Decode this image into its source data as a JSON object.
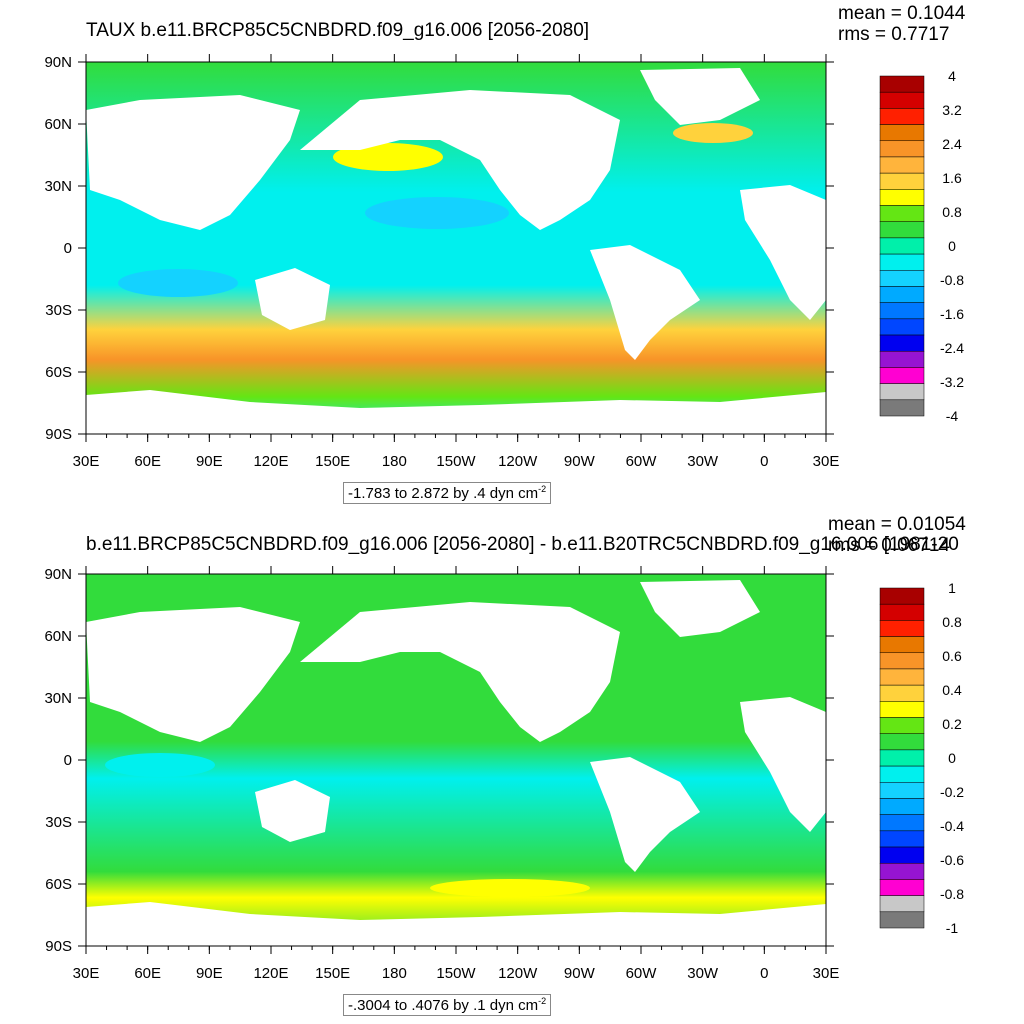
{
  "chart_data": [
    {
      "type": "heatmap",
      "title": "TAUX b.e11.BRCP85C5CNBDRD.f09_g16.006 [2056-2080]",
      "stats": {
        "mean": "mean = 0.1044",
        "rms": "rms = 0.7717"
      },
      "x_ticks": [
        "30E",
        "60E",
        "90E",
        "120E",
        "150E",
        "180",
        "150W",
        "120W",
        "90W",
        "60W",
        "30W",
        "0",
        "30E"
      ],
      "y_ticks": [
        "90N",
        "60N",
        "30N",
        "0",
        "30S",
        "60S",
        "90S"
      ],
      "xlim": [
        "30E",
        "30E"
      ],
      "ylim": [
        "90S",
        "90N"
      ],
      "colorbar": {
        "labels": [
          "4",
          "3.2",
          "2.4",
          "1.6",
          "0.8",
          "0",
          "-0.8",
          "-1.6",
          "-2.4",
          "-3.2",
          "-4"
        ],
        "colors": [
          "#a80000",
          "#d40000",
          "#ff2000",
          "#e87800",
          "#f89428",
          "#ffb43c",
          "#ffd23c",
          "#ffff00",
          "#64e614",
          "#32dc3c",
          "#00f0aa",
          "#00f0ee",
          "#14d2ff",
          "#00aaff",
          "#0078ff",
          "#0046ff",
          "#0000f0",
          "#9614d2",
          "#ff00d2",
          "#c8c8c8",
          "#7a7a7a"
        ]
      },
      "contour_label": {
        "range": "-1.783 to 2.872 by .4 dyn cm",
        "unit_exp": "-2"
      }
    },
    {
      "type": "heatmap",
      "title": "b.e11.BRCP85C5CNBDRD.f09_g16.006 [2056-2080] - b.e11.B20TRC5CNBDRD.f09_g16.006 [1981-20",
      "stats": {
        "mean": "mean = 0.01054",
        "rms": "rms = 0.06714"
      },
      "x_ticks": [
        "30E",
        "60E",
        "90E",
        "120E",
        "150E",
        "180",
        "150W",
        "120W",
        "90W",
        "60W",
        "30W",
        "0",
        "30E"
      ],
      "y_ticks": [
        "90N",
        "60N",
        "30N",
        "0",
        "30S",
        "60S",
        "90S"
      ],
      "xlim": [
        "30E",
        "30E"
      ],
      "ylim": [
        "90S",
        "90N"
      ],
      "colorbar": {
        "labels": [
          "1",
          "0.8",
          "0.6",
          "0.4",
          "0.2",
          "0",
          "-0.2",
          "-0.4",
          "-0.6",
          "-0.8",
          "-1"
        ],
        "colors": [
          "#a80000",
          "#d40000",
          "#ff2000",
          "#e87800",
          "#f89428",
          "#ffb43c",
          "#ffd23c",
          "#ffff00",
          "#64e614",
          "#32dc3c",
          "#00f0aa",
          "#00f0ee",
          "#14d2ff",
          "#00aaff",
          "#0078ff",
          "#0046ff",
          "#0000f0",
          "#9614d2",
          "#ff00d2",
          "#c8c8c8",
          "#7a7a7a"
        ]
      },
      "contour_label": {
        "range": "-.3004 to .4076 by .1 dyn cm",
        "unit_exp": "-2"
      }
    }
  ],
  "colors": {
    "land": "#ffffff",
    "ocean_base_top": "#00f0ee",
    "ocean_base_bottom": "#32dc3c"
  }
}
